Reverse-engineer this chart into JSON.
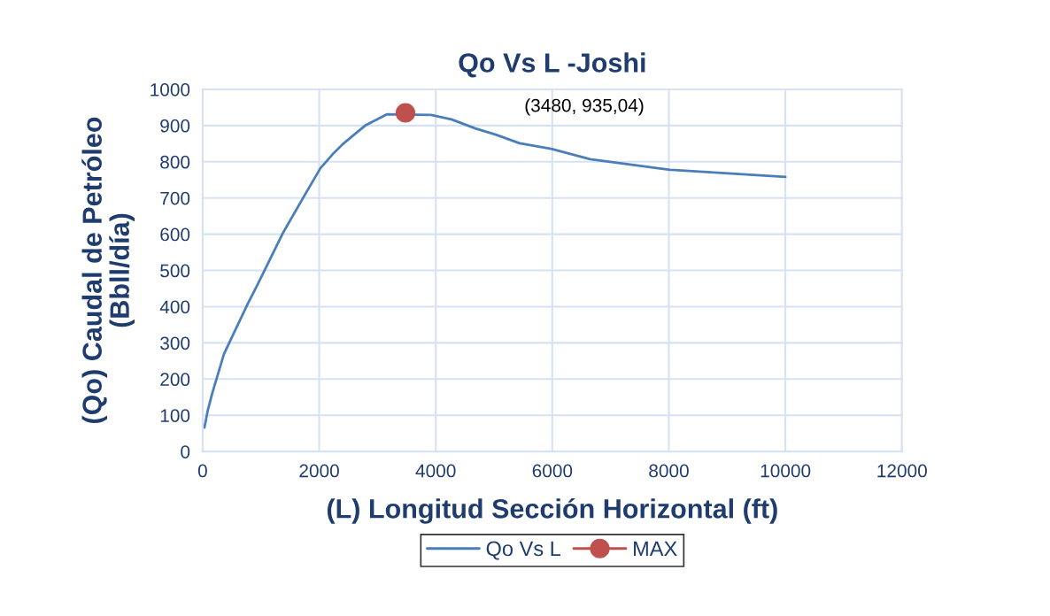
{
  "chart_data": {
    "type": "line",
    "title": "Qo Vs L -Joshi",
    "xlabel": "(L) Longitud Sección Horizontal (ft)",
    "ylabel": "(Qo) Caudal de Petróleo\n(Bbll/día)",
    "xlim": [
      0,
      12000
    ],
    "xticks": [
      0,
      2000,
      4000,
      6000,
      8000,
      10000,
      12000
    ],
    "ylim": [
      0,
      1000
    ],
    "yticks": [
      0,
      100,
      200,
      300,
      400,
      500,
      600,
      700,
      800,
      900,
      1000
    ],
    "grid": true,
    "legend": "bottom",
    "series": [
      {
        "name": "Qo Vs L",
        "color": "#4a7ebb",
        "marker": "none",
        "line_style": "solid",
        "x": [
          30,
          90,
          170,
          365,
          580,
          775,
          930,
          1080,
          1380,
          1730,
          2020,
          2250,
          2400,
          2600,
          2790,
          3160,
          3920,
          4270,
          4680,
          5030,
          5440,
          5980,
          6650,
          8020,
          10000
        ],
        "values": [
          66,
          115,
          164,
          269,
          342,
          408,
          457,
          506,
          604,
          702,
          782,
          824,
          848,
          875,
          900,
          931,
          929,
          917,
          892,
          875,
          851,
          836,
          807,
          778,
          758
        ]
      },
      {
        "name": "MAX",
        "color": "#c0504d",
        "marker": "circle",
        "line_style": "solid",
        "x": [
          3480
        ],
        "values": [
          935.04
        ]
      }
    ],
    "annotations": [
      "(3480, 935,04)"
    ]
  }
}
